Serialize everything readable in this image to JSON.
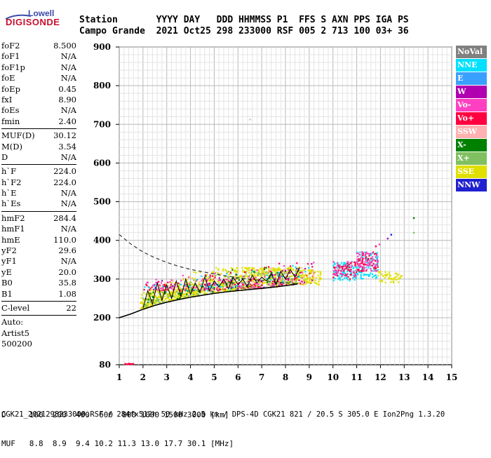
{
  "logo": {
    "top": "Lowell",
    "bottom": "DIGISONDE"
  },
  "header": {
    "line1": "Station       YYYY DAY   DDD HHMMSS P1  FFS S AXN PPS IGA PS",
    "line2": "Campo Grande  2021 Oct25 298 233000 RSF 005 2 713 100 03+ 36"
  },
  "params": [
    {
      "name": "foF2",
      "value": "8.500"
    },
    {
      "name": "foF1",
      "value": "N/A"
    },
    {
      "name": "foF1p",
      "value": "N/A"
    },
    {
      "name": "foE",
      "value": "N/A"
    },
    {
      "name": "foEp",
      "value": "0.45"
    },
    {
      "name": "fxI",
      "value": "8.90"
    },
    {
      "name": "foEs",
      "value": "N/A"
    },
    {
      "name": "fmin",
      "value": "2.40"
    },
    {
      "sep": true
    },
    {
      "name": "MUF(D)",
      "value": "30.12"
    },
    {
      "name": "M(D)",
      "value": "3.54"
    },
    {
      "name": "D",
      "value": "N/A"
    },
    {
      "sep": true
    },
    {
      "name": "h`F",
      "value": "224.0"
    },
    {
      "name": "h`F2",
      "value": "224.0"
    },
    {
      "name": "h`E",
      "value": "N/A"
    },
    {
      "name": "h`Es",
      "value": "N/A"
    },
    {
      "sep": true
    },
    {
      "name": "hmF2",
      "value": "284.4"
    },
    {
      "name": "hmF1",
      "value": "N/A"
    },
    {
      "name": "hmE",
      "value": "110.0"
    },
    {
      "name": "yF2",
      "value": "29.6"
    },
    {
      "name": "yF1",
      "value": "N/A"
    },
    {
      "name": "yE",
      "value": "20.0"
    },
    {
      "name": "B0",
      "value": "35.8"
    },
    {
      "name": "B1",
      "value": "1.08"
    },
    {
      "sep": true
    },
    {
      "name": "C-level",
      "value": "22"
    },
    {
      "sep": true
    },
    {
      "name": "Auto:",
      "value": ""
    },
    {
      "name": "Artist5",
      "value": ""
    },
    {
      "name": "500200",
      "value": ""
    }
  ],
  "legend": [
    {
      "label": "NoVal",
      "color": "#808080"
    },
    {
      "label": "NNE",
      "color": "#00e0ff"
    },
    {
      "label": "E",
      "color": "#3aa0ff"
    },
    {
      "label": "W",
      "color": "#b000b0"
    },
    {
      "label": "Vo-",
      "color": "#ff40c0"
    },
    {
      "label": "Vo+",
      "color": "#ff0040"
    },
    {
      "label": "SSW",
      "color": "#ffb0b0"
    },
    {
      "label": "X-",
      "color": "#008000"
    },
    {
      "label": "X+",
      "color": "#80c060"
    },
    {
      "label": "SSE",
      "color": "#e0e000"
    },
    {
      "label": "NNW",
      "color": "#2020d0"
    }
  ],
  "bottom": {
    "d_line": "D     100  200  400  600  800 1000 1500 3000 [km]",
    "muf_line": "MUF   8.8  8.9  9.4 10.2 11.3 13.0 17.7 30.1 [MHz]",
    "footer": "CGK21_2021298233000.RSF / 284fx512h 50 kHz 2.5 km / DPS-4D CGK21 821 / 20.5 S 305.0 E Ion2Png 1.3.20"
  },
  "chart_data": {
    "type": "scatter",
    "xlim": [
      1,
      15
    ],
    "ylim": [
      80,
      900
    ],
    "x_ticks": [
      1,
      2,
      3,
      4,
      5,
      6,
      7,
      8,
      9,
      10,
      11,
      12,
      13,
      14,
      15
    ],
    "y_ticks": [
      80,
      200,
      300,
      400,
      500,
      600,
      700,
      800,
      900
    ],
    "grid": true,
    "trace_clusters": [
      {
        "x_range": [
          1.9,
          8.6
        ],
        "y_low": 215,
        "y_high": 330,
        "color": "#e0e000",
        "density": 900
      },
      {
        "x_range": [
          1.9,
          8.6
        ],
        "y_low": 225,
        "y_high": 320,
        "color": "#80c060",
        "density": 180
      },
      {
        "x_range": [
          2.0,
          8.6
        ],
        "y_low": 240,
        "y_high": 330,
        "color": "#008000",
        "density": 90
      },
      {
        "x_range": [
          2.0,
          9.2
        ],
        "y_low": 270,
        "y_high": 345,
        "color": "#ff40c0",
        "density": 140
      },
      {
        "x_range": [
          2.0,
          9.2
        ],
        "y_low": 270,
        "y_high": 345,
        "color": "#ff0040",
        "density": 120
      },
      {
        "x_range": [
          2.0,
          9.2
        ],
        "y_low": 270,
        "y_high": 340,
        "color": "#b000b0",
        "density": 60
      },
      {
        "x_range": [
          2.0,
          9.2
        ],
        "y_low": 270,
        "y_high": 340,
        "color": "#ffb0b0",
        "density": 60
      },
      {
        "x_range": [
          2.0,
          9.2
        ],
        "y_low": 270,
        "y_high": 340,
        "color": "#00e0ff",
        "density": 50
      },
      {
        "x_range": [
          8.6,
          9.5
        ],
        "y_low": 285,
        "y_high": 325,
        "color": "#e0e000",
        "density": 80
      },
      {
        "x_range": [
          10.0,
          11.0
        ],
        "y_low": 295,
        "y_high": 345,
        "color": "#00e0ff",
        "density": 90
      },
      {
        "x_range": [
          10.0,
          11.0
        ],
        "y_low": 300,
        "y_high": 345,
        "color": "#ff0040",
        "density": 60
      },
      {
        "x_range": [
          10.0,
          11.0
        ],
        "y_low": 305,
        "y_high": 345,
        "color": "#ff40c0",
        "density": 40
      },
      {
        "x_range": [
          11.0,
          11.9
        ],
        "y_low": 300,
        "y_high": 370,
        "color": "#00e0ff",
        "density": 90
      },
      {
        "x_range": [
          11.0,
          11.9
        ],
        "y_low": 320,
        "y_high": 370,
        "color": "#ff0040",
        "density": 60
      },
      {
        "x_range": [
          11.0,
          11.9
        ],
        "y_low": 320,
        "y_high": 370,
        "color": "#ff40c0",
        "density": 60
      },
      {
        "x_range": [
          11.9,
          12.8
        ],
        "y_low": 290,
        "y_high": 320,
        "color": "#e0e000",
        "density": 40
      },
      {
        "x_range": [
          12.5,
          12.9
        ],
        "y_low": 300,
        "y_high": 315,
        "color": "#e0e000",
        "density": 10
      },
      {
        "x_range": [
          1.1,
          1.6
        ],
        "y_low": 81,
        "y_high": 83,
        "color": "#ff0040",
        "density": 14
      }
    ],
    "isolated_points": [
      {
        "x": 12.3,
        "y": 405,
        "color": "#b000b0"
      },
      {
        "x": 12.45,
        "y": 415,
        "color": "#2020d0"
      },
      {
        "x": 13.4,
        "y": 458,
        "color": "#008000"
      },
      {
        "x": 13.4,
        "y": 420,
        "color": "#80c060"
      },
      {
        "x": 6.5,
        "y": 713,
        "color": "#cccccc"
      },
      {
        "x": 11.8,
        "y": 385,
        "color": "#ff0040"
      },
      {
        "x": 11.95,
        "y": 390,
        "color": "#ff40c0"
      }
    ],
    "trace_line": {
      "x": [
        2.0,
        2.2,
        2.4,
        2.6,
        2.8,
        3.0,
        3.2,
        3.4,
        3.6,
        3.8,
        4.0,
        4.2,
        4.4,
        4.6,
        4.8,
        5.0,
        5.2,
        5.4,
        5.6,
        5.8,
        6.0,
        6.2,
        6.4,
        6.6,
        6.8,
        7.0,
        7.2,
        7.4,
        7.6,
        7.8,
        8.0,
        8.2,
        8.4,
        8.6
      ],
      "y": [
        225,
        270,
        235,
        290,
        245,
        285,
        250,
        295,
        255,
        300,
        260,
        290,
        265,
        305,
        270,
        295,
        280,
        300,
        275,
        305,
        285,
        300,
        280,
        310,
        290,
        305,
        295,
        315,
        285,
        320,
        300,
        325,
        305,
        330
      ]
    },
    "lower_curve": {
      "x": [
        1.0,
        1.5,
        2.0,
        2.5,
        3.0,
        3.5,
        4.0,
        4.5,
        5.0,
        5.5,
        6.0,
        6.5,
        7.0,
        7.5,
        8.0,
        8.5
      ],
      "y": [
        200,
        210,
        222,
        232,
        240,
        247,
        253,
        258,
        263,
        267,
        270,
        273,
        276,
        279,
        283,
        287
      ]
    },
    "dashed_upper": {
      "x": [
        1.0,
        1.5,
        2.0,
        2.5,
        3.0,
        3.5,
        4.0,
        4.5,
        5.0,
        5.5,
        6.0,
        6.5,
        7.0,
        7.5,
        8.0,
        8.5
      ],
      "y": [
        415,
        390,
        370,
        355,
        343,
        333,
        325,
        319,
        313,
        308,
        303,
        299,
        296,
        293,
        290,
        288
      ]
    },
    "dashed_lower": {
      "x": [
        1.0,
        1.5,
        2.0,
        2.5,
        3.0,
        3.5,
        4.0,
        4.5,
        5.0,
        5.5,
        6.0,
        6.5,
        7.0,
        7.5,
        8.0,
        8.5
      ],
      "y": [
        200,
        210,
        222,
        232,
        240,
        247,
        253,
        258,
        263,
        267,
        270,
        273,
        276,
        279,
        283,
        287
      ]
    }
  }
}
